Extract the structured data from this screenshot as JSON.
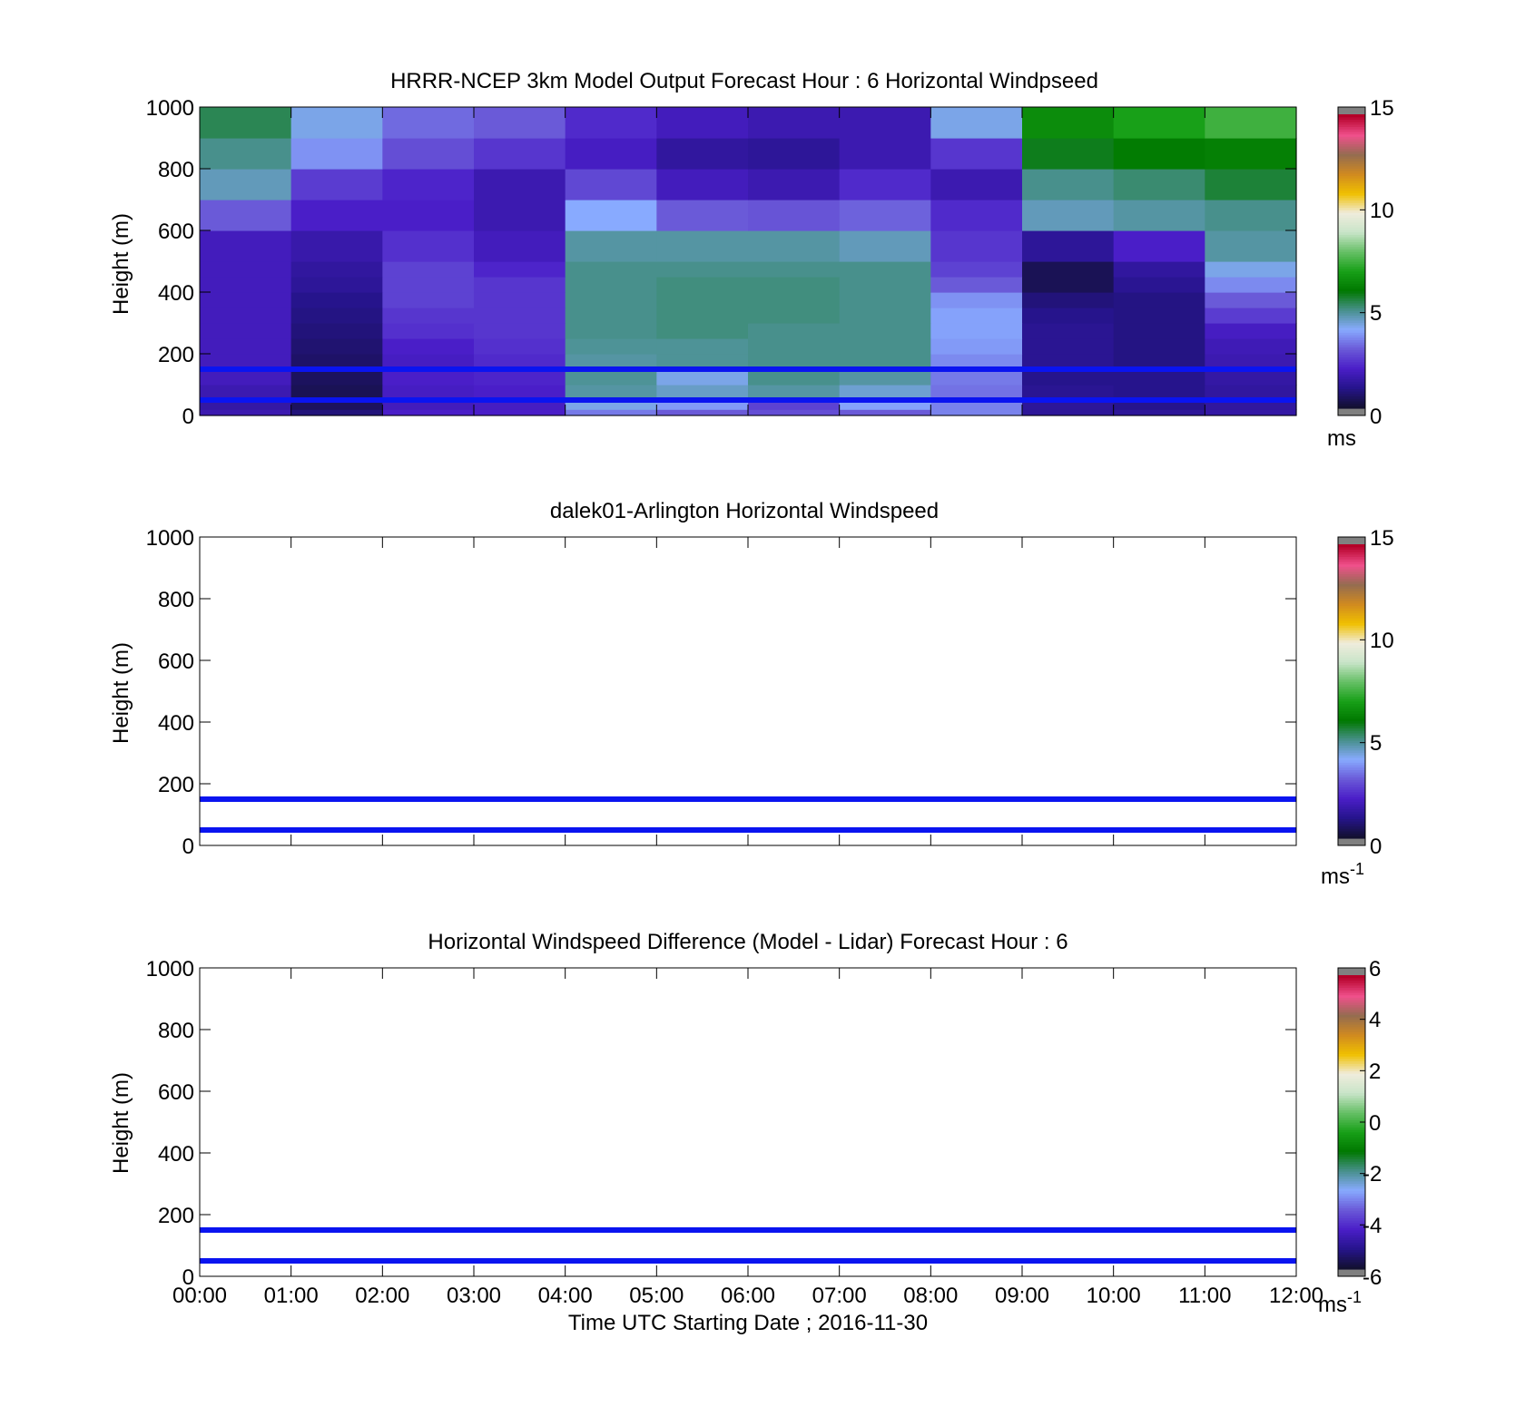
{
  "chart_data": [
    {
      "type": "heatmap",
      "title": "HRRR-NCEP 3km Model Output   Forecast Hour : 6 Horizontal Windpseed",
      "ylabel": "Height (m)",
      "ylim": [
        0,
        1000
      ],
      "yticks": [
        "0",
        "200",
        "400",
        "600",
        "800",
        "1000"
      ],
      "x_hours": [
        0,
        1,
        2,
        3,
        4,
        5,
        6,
        7,
        8,
        9,
        10,
        11,
        12
      ],
      "colorbar": {
        "min": 0,
        "max": 15,
        "ticks": [
          "0",
          "5",
          "10",
          "15"
        ],
        "unit": "ms",
        "unit_sup": ""
      },
      "hlines_m": [
        50,
        150
      ],
      "has_cells": true,
      "cells": {
        "x_edges": [
          0,
          1,
          2,
          3,
          4,
          5,
          6,
          7,
          8,
          9,
          10,
          11,
          12
        ],
        "bins": [
          {
            "y0": 0,
            "y1": 20,
            "speeds": [
              1.6,
              0.8,
              2.0,
              2.0,
              3.4,
              3.0,
              2.8,
              3.0,
              3.5,
              1.2,
              1.2,
              1.4
            ]
          },
          {
            "y0": 20,
            "y1": 50,
            "speeds": [
              1.4,
              0.5,
              1.8,
              1.9,
              4.2,
              3.8,
              2.6,
              3.9,
              3.5,
              1.2,
              1.0,
              1.3
            ]
          },
          {
            "y0": 50,
            "y1": 100,
            "speeds": [
              1.6,
              0.4,
              1.9,
              2.0,
              4.8,
              4.5,
              4.8,
              4.4,
              3.3,
              1.1,
              1.0,
              1.3
            ]
          },
          {
            "y0": 100,
            "y1": 150,
            "speeds": [
              1.8,
              0.5,
              2.0,
              2.1,
              4.9,
              4.2,
              5.0,
              4.8,
              3.4,
              1.0,
              1.0,
              1.4
            ]
          },
          {
            "y0": 150,
            "y1": 200,
            "speeds": [
              1.8,
              0.6,
              1.9,
              2.2,
              4.8,
              4.9,
              5.0,
              5.0,
              3.6,
              1.1,
              0.9,
              1.6
            ]
          },
          {
            "y0": 200,
            "y1": 250,
            "speeds": [
              1.8,
              0.7,
              2.0,
              2.3,
              4.9,
              4.9,
              5.0,
              5.0,
              3.8,
              1.1,
              0.9,
              1.7
            ]
          },
          {
            "y0": 250,
            "y1": 300,
            "speeds": [
              1.8,
              0.8,
              2.3,
              2.4,
              5.0,
              5.1,
              5.0,
              5.0,
              3.9,
              1.1,
              0.9,
              1.9
            ]
          },
          {
            "y0": 300,
            "y1": 350,
            "speeds": [
              1.8,
              0.9,
              2.4,
              2.4,
              5.0,
              5.1,
              5.1,
              5.0,
              3.9,
              1.0,
              0.9,
              2.5
            ]
          },
          {
            "y0": 350,
            "y1": 400,
            "speeds": [
              1.8,
              1.0,
              2.6,
              2.4,
              5.0,
              5.1,
              5.1,
              5.0,
              3.7,
              0.8,
              0.9,
              3.0
            ]
          },
          {
            "y0": 400,
            "y1": 450,
            "speeds": [
              1.8,
              1.2,
              2.6,
              2.4,
              5.0,
              5.1,
              5.1,
              5.0,
              3.0,
              0.4,
              1.1,
              3.6
            ]
          },
          {
            "y0": 450,
            "y1": 500,
            "speeds": [
              1.8,
              1.3,
              2.6,
              2.1,
              5.0,
              5.0,
              5.0,
              5.0,
              2.6,
              0.4,
              1.3,
              4.2
            ]
          },
          {
            "y0": 500,
            "y1": 600,
            "speeds": [
              1.8,
              1.5,
              2.3,
              1.8,
              4.8,
              4.8,
              4.8,
              4.6,
              2.4,
              1.2,
              2.0,
              4.8
            ]
          },
          {
            "y0": 600,
            "y1": 700,
            "speeds": [
              3.0,
              2.0,
              2.0,
              1.6,
              4.0,
              3.0,
              2.9,
              3.1,
              2.2,
              4.6,
              4.8,
              5.0
            ]
          },
          {
            "y0": 700,
            "y1": 800,
            "speeds": [
              4.6,
              2.5,
              2.1,
              1.6,
              2.7,
              1.8,
              1.6,
              2.2,
              1.6,
              5.0,
              5.2,
              5.6
            ]
          },
          {
            "y0": 800,
            "y1": 900,
            "speeds": [
              5.0,
              3.7,
              2.8,
              2.4,
              1.9,
              1.3,
              1.2,
              1.6,
              2.4,
              5.8,
              6.1,
              6.2
            ]
          },
          {
            "y0": 900,
            "y1": 1000,
            "speeds": [
              5.4,
              4.2,
              3.2,
              3.0,
              2.2,
              1.8,
              1.6,
              1.6,
              4.2,
              6.5,
              7.0,
              7.5
            ]
          }
        ]
      }
    },
    {
      "type": "heatmap",
      "title": "dalek01-Arlington  Horizontal Windspeed",
      "ylabel": "Height (m)",
      "ylim": [
        0,
        1000
      ],
      "yticks": [
        "0",
        "200",
        "400",
        "600",
        "800",
        "1000"
      ],
      "x_hours": [
        0,
        1,
        2,
        3,
        4,
        5,
        6,
        7,
        8,
        9,
        10,
        11,
        12
      ],
      "colorbar": {
        "min": 0,
        "max": 15,
        "ticks": [
          "0",
          "5",
          "10",
          "15"
        ],
        "unit": "ms",
        "unit_sup": "-1"
      },
      "hlines_m": [
        50,
        150
      ],
      "has_cells": false
    },
    {
      "type": "heatmap",
      "title": "Horizontal Windspeed Difference (Model - Lidar) Forecast Hour : 6",
      "ylabel": "Height (m)",
      "ylim": [
        0,
        1000
      ],
      "yticks": [
        "0",
        "200",
        "400",
        "600",
        "800",
        "1000"
      ],
      "x_hours": [
        0,
        1,
        2,
        3,
        4,
        5,
        6,
        7,
        8,
        9,
        10,
        11,
        12
      ],
      "xticks": [
        "00:00",
        "01:00",
        "02:00",
        "03:00",
        "04:00",
        "05:00",
        "06:00",
        "07:00",
        "08:00",
        "09:00",
        "10:00",
        "11:00",
        "12:00"
      ],
      "xlabel": "Time UTC  Starting Date ; 2016-11-30",
      "colorbar": {
        "min": -6,
        "max": 6,
        "ticks": [
          "-6",
          "-4",
          "-2",
          "0",
          "2",
          "4",
          "6"
        ],
        "unit": "ms",
        "unit_sup": "-1"
      },
      "hlines_m": [
        50,
        150
      ],
      "has_cells": false
    }
  ],
  "colors": {
    "reference_line": "#0a14f0",
    "colormap": [
      "#121030",
      "#26148c",
      "#4a1ec8",
      "#6a5ad8",
      "#88aaff",
      "#48908c",
      "#007800",
      "#18a018",
      "#66c066",
      "#c8e4c8",
      "#f0ecdc",
      "#f0c000",
      "#d08a20",
      "#946c50",
      "#f0508c",
      "#b40028"
    ]
  }
}
